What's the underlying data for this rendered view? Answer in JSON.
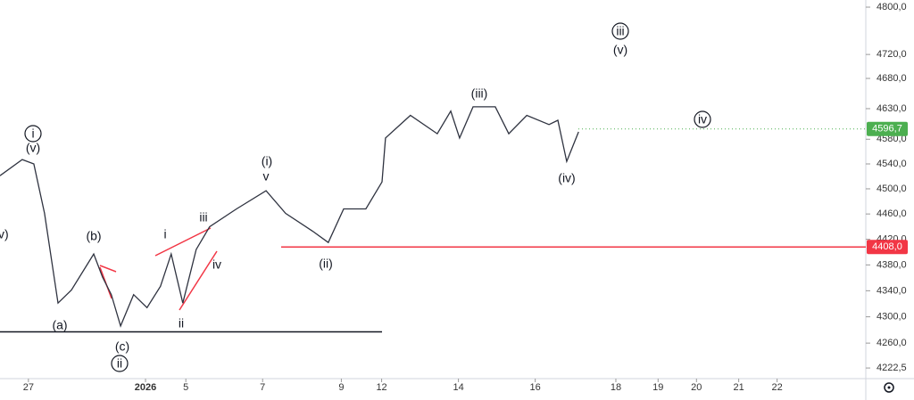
{
  "chart_data": {
    "type": "line",
    "log": true,
    "x": [
      -0.74,
      -0.16,
      0.14,
      0.42,
      0.77,
      1.12,
      1.7,
      1.93,
      2.16,
      2.4,
      2.74,
      3.09,
      3.44,
      3.72,
      4.02,
      4.37,
      4.72,
      5.42,
      6.19,
      6.7,
      7.4,
      7.81,
      8.21,
      8.79,
      9.21,
      9.3,
      9.95,
      10.65,
      11.0,
      11.23,
      11.58,
      12.16,
      12.51,
      12.98,
      13.56,
      13.79,
      14.02,
      14.33
    ],
    "series": [
      {
        "color": "#2f3340",
        "values": [
          4521,
          4547,
          4540,
          4461,
          4321,
          4341,
          4397,
          4361,
          4334,
          4286,
          4334,
          4314,
          4347,
          4397,
          4321,
          4404,
          4440,
          4468,
          4497,
          4461,
          4433,
          4415,
          4468,
          4468,
          4511,
          4582,
          4619,
          4589,
          4626,
          4582,
          4633,
          4633,
          4589,
          4619,
          4604,
          4611,
          4544,
          4592
        ]
      }
    ],
    "xlim": [
      -0.74,
      21.81
    ],
    "ylim": [
      4206.6,
      4812.2
    ],
    "xticks": [
      {
        "value": 0,
        "label": "27"
      },
      {
        "value": 3.05,
        "label": "2026"
      },
      {
        "value": 4.1,
        "label": "5"
      },
      {
        "value": 6.1,
        "label": "7"
      },
      {
        "value": 8.15,
        "label": "9"
      },
      {
        "value": 9.2,
        "label": "12"
      },
      {
        "value": 11.2,
        "label": "14"
      },
      {
        "value": 13.2,
        "label": "16"
      },
      {
        "value": 15.3,
        "label": "18"
      },
      {
        "value": 16.4,
        "label": "19"
      },
      {
        "value": 17.4,
        "label": "20"
      },
      {
        "value": 18.5,
        "label": "21"
      },
      {
        "value": 19.5,
        "label": "22"
      }
    ],
    "yticks": [
      {
        "value": 4222.5,
        "label": "4222,5"
      },
      {
        "value": 4260,
        "label": "4260,0"
      },
      {
        "value": 4300,
        "label": "4300,0"
      },
      {
        "value": 4340,
        "label": "4340,0"
      },
      {
        "value": 4380,
        "label": "4380,0"
      },
      {
        "value": 4420,
        "label": "4420,0"
      },
      {
        "value": 4460,
        "label": "4460,0"
      },
      {
        "value": 4500,
        "label": "4500,0"
      },
      {
        "value": 4540,
        "label": "4540,0"
      },
      {
        "value": 4580,
        "label": "4580,0"
      },
      {
        "value": 4630,
        "label": "4630,0"
      },
      {
        "value": 4680,
        "label": "4680,0"
      },
      {
        "value": 4720,
        "label": "4720,0"
      },
      {
        "value": 4800,
        "label": "4800,0"
      }
    ],
    "last_price": {
      "value": 4596.7,
      "label": "4596,7",
      "color": "#4caf50"
    },
    "level": {
      "value": 4408,
      "label": "4408,0",
      "color": "#f23645"
    },
    "support_level": 4277,
    "annotations": [
      {
        "text": "i",
        "circled": true
      },
      {
        "text": "(v)"
      },
      {
        "text": "v)"
      },
      {
        "text": "(b)"
      },
      {
        "text": "(a)"
      },
      {
        "text": "(c)"
      },
      {
        "text": "ii",
        "circled": true
      },
      {
        "text": "i"
      },
      {
        "text": "iii"
      },
      {
        "text": "iv"
      },
      {
        "text": "ii"
      },
      {
        "text": "(i)"
      },
      {
        "text": "v"
      },
      {
        "text": "(ii)"
      },
      {
        "text": "(iii)"
      },
      {
        "text": "(iv)"
      },
      {
        "text": "iii",
        "circled": true
      },
      {
        "text": "(v)"
      },
      {
        "text": "iv",
        "circled": true
      }
    ]
  }
}
